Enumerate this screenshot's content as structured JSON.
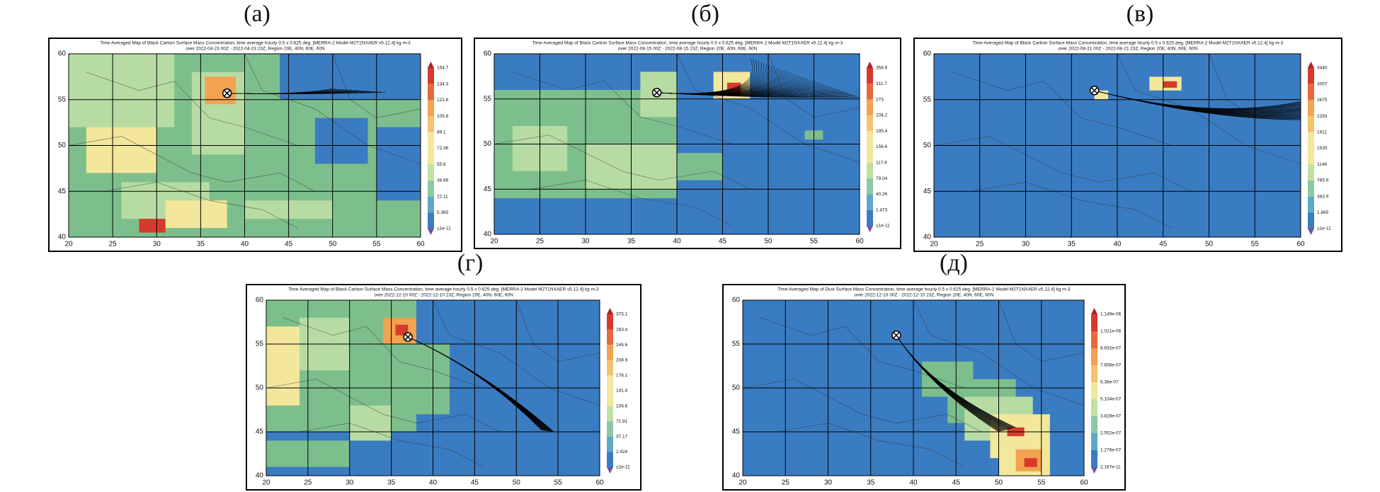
{
  "panels": [
    {
      "label": "(а)",
      "title": [
        "Time Averaged Map of Black Carbon Surface Mass Concentration, time average hourly 0.5 x 0.625 deg. [MERRA-2 Model M2T1NXAER v5.12.4] kg m-3",
        "over 2022-04-23 00Z - 2022-04-23 23Z, Region 20E, 40N, 60E, 60N"
      ],
      "x_labels": [
        "20",
        "25",
        "30",
        "35",
        "40",
        "45",
        "50",
        "55",
        "60"
      ],
      "y_labels": [
        "40",
        "45",
        "50",
        "55",
        "60"
      ],
      "colorbar_labels": [
        "154.7",
        "134.3",
        "122.8",
        "105.8",
        "89.1",
        "72.36",
        "55.6",
        "38.86",
        "22.11",
        "5.365",
        "≤1e-11"
      ]
    },
    {
      "label": "(б)",
      "title": [
        "Time Averaged Map of Black Carbon Surface Mass Concentration, time average hourly 0.5 x 0.625 deg. [MERRA-2 Model M2T1NXAER v5.12.4] kg m-3",
        "over 2022-08-15 00Z - 2022-08-15 23Z, Region 20E, 40N, 60E, 60N"
      ],
      "x_labels": [
        "20",
        "25",
        "30",
        "35",
        "40",
        "45",
        "50",
        "55",
        "60"
      ],
      "y_labels": [
        "40",
        "45",
        "50",
        "55",
        "60"
      ],
      "colorbar_labels": [
        "358.6",
        "311.7",
        "273",
        "234.2",
        "195.4",
        "156.6",
        "117.8",
        "79.04",
        "40.26",
        "1.473",
        "≤1e-11"
      ]
    },
    {
      "label": "(в)",
      "title": [
        "Time Averaged Map of Black Carbon Surface Mass Concentration, time average hourly 0.5 x 0.625 deg. [MERRA-2 Model M2T1NXAER v5.12.4] kg m-3",
        "over 2022-08-21 00Z - 2022-08-21 23Z, Region 20E, 40N, 60E, 60N"
      ],
      "x_labels": [
        "20",
        "25",
        "30",
        "35",
        "40",
        "45",
        "50",
        "55",
        "60"
      ],
      "y_labels": [
        "40",
        "45",
        "50",
        "55",
        "60"
      ],
      "colorbar_labels": [
        "3440",
        "3057",
        "2675",
        "2293",
        "1911",
        "1530",
        "1148",
        "765.9",
        "383.9",
        "1.865",
        "≤1e-11"
      ]
    },
    {
      "label": "(г)",
      "title": [
        "Time Averaged Map of Black Carbon Surface Mass Concentration, time average hourly 0.5 x 0.625 deg. [MERRA-2 Model M2T1NXAER v5.12.4] kg m-3",
        "over 2022-12-10 00Z - 2022-12-10 23Z, Region 20E, 40N, 60E, 60N"
      ],
      "x_labels": [
        "20",
        "25",
        "30",
        "35",
        "40",
        "45",
        "50",
        "55",
        "60"
      ],
      "y_labels": [
        "40",
        "45",
        "50",
        "55",
        "60"
      ],
      "colorbar_labels": [
        "373.1",
        "283.4",
        "245.6",
        "208.9",
        "176.1",
        "141.4",
        "106.6",
        "71.91",
        "37.17",
        "2.424",
        "≤1e-11"
      ]
    },
    {
      "label": "(д)",
      "title": [
        "Time Averaged Map of Dust Surface Mass Concentration, time average hourly 0.5 x 0.625 deg. [MERRA-2 Model M2T1NXAER v5.12.4] kg m-3",
        "over 2022-12-10 00Z - 2022-12-10 23Z, Region 20E, 40N, 60E, 60N"
      ],
      "x_labels": [
        "20",
        "25",
        "30",
        "35",
        "40",
        "45",
        "50",
        "55",
        "60"
      ],
      "y_labels": [
        "40",
        "45",
        "50",
        "55",
        "60"
      ],
      "colorbar_labels": [
        "1.149e-06",
        "1.021e-06",
        "8.932e-07",
        "7.656e-07",
        "6.38e-07",
        "5.104e-07",
        "3.828e-07",
        "2.552e-07",
        "1.276e-07",
        "2.167e-11"
      ]
    }
  ]
}
